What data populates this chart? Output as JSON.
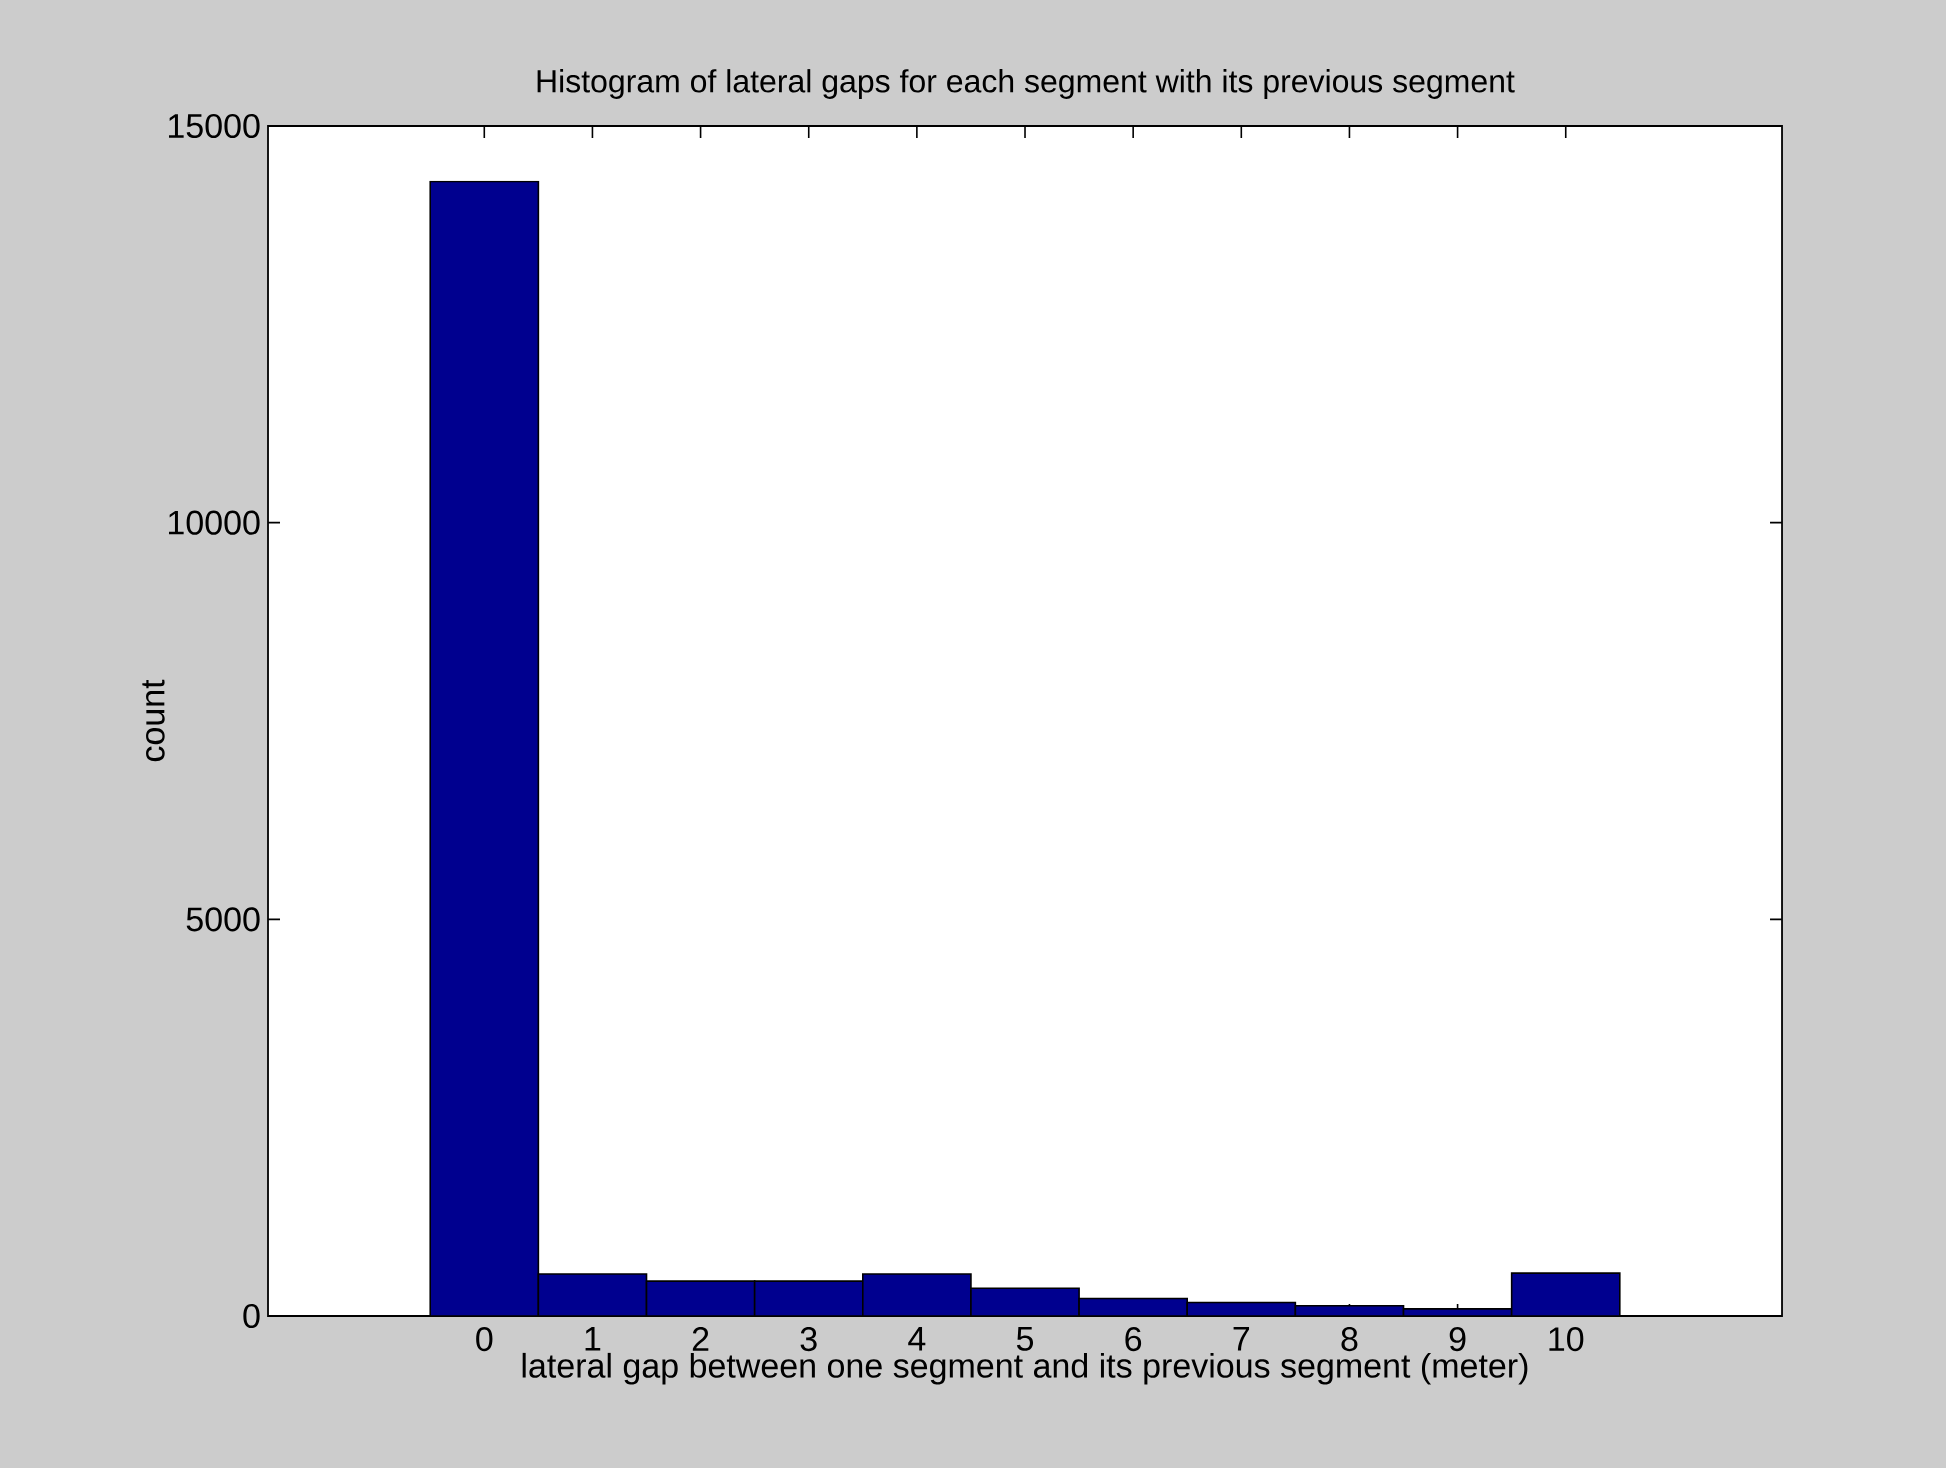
{
  "chart_data": {
    "type": "histogram",
    "title": "Histogram of lateral gaps for each segment with its previous segment",
    "xlabel": "lateral gap between one segment and its previous segment (meter)",
    "ylabel": "count",
    "bins": [
      -0.5,
      0.5,
      1.5,
      2.5,
      3.5,
      4.5,
      5.5,
      6.5,
      7.5,
      8.5,
      9.5,
      10.5
    ],
    "values": [
      14300,
      530,
      440,
      440,
      530,
      350,
      220,
      170,
      130,
      90,
      540
    ],
    "color": "#00008f",
    "xlim": [
      -2,
      12
    ],
    "ylim": [
      0,
      15000
    ],
    "xticks": [
      0,
      1,
      2,
      3,
      4,
      5,
      6,
      7,
      8,
      9,
      10
    ],
    "yticks": [
      0,
      5000,
      10000,
      15000
    ],
    "grid": false
  }
}
